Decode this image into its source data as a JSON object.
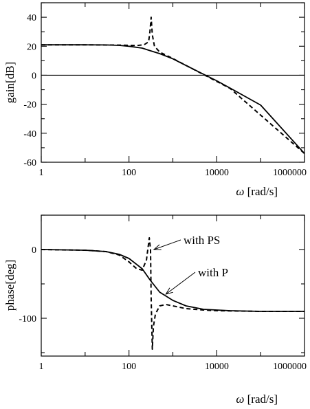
{
  "chart_data": [
    {
      "type": "line",
      "xscale": "log",
      "xlim": [
        1,
        1000000
      ],
      "ylim": [
        -60,
        50
      ],
      "xticks": [
        1,
        100,
        10000,
        1000000
      ],
      "xtick_labels": [
        "1",
        "100",
        "10000",
        "1000000"
      ],
      "yticks": [
        -60,
        -40,
        -20,
        0,
        20,
        40
      ],
      "ytick_labels": [
        "-60",
        "-40",
        "-20",
        "0",
        "20",
        "40"
      ],
      "xlabel_symbol": "ω",
      "xlabel_unit": "[rad/s]",
      "ylabel": "gain[dB]",
      "grid": false,
      "reference_lines": [
        {
          "y": 0
        }
      ],
      "series": [
        {
          "style": "solid",
          "x": [
            1,
            10,
            30,
            60,
            100,
            200,
            300,
            500,
            1000,
            2000,
            5000,
            10000,
            20000,
            100000,
            1000000
          ],
          "y": [
            21,
            21,
            20.9,
            20.6,
            20,
            18.7,
            17,
            14.9,
            11.3,
            6.7,
            0.7,
            -3.8,
            -8.8,
            -20.6,
            -54
          ]
        },
        {
          "style": "dashed",
          "x": [
            1,
            10,
            60,
            150,
            220,
            280,
            300,
            320,
            340,
            380,
            500,
            1000,
            5000,
            20000,
            1000000
          ],
          "y": [
            21,
            21,
            20.8,
            20.5,
            21,
            23,
            30,
            40,
            28,
            20,
            16,
            11.5,
            0.5,
            -9,
            -54
          ]
        }
      ]
    },
    {
      "type": "line",
      "xscale": "log",
      "xlim": [
        1,
        1000000
      ],
      "ylim": [
        -155,
        50
      ],
      "xticks": [
        1,
        100,
        10000,
        1000000
      ],
      "xtick_labels": [
        "1",
        "100",
        "10000",
        "1000000"
      ],
      "yticks": [
        0,
        -100
      ],
      "ytick_labels": [
        "0",
        "-100"
      ],
      "xlabel_symbol": "ω",
      "xlabel_unit": "[rad/s]",
      "ylabel": "phase[deg]",
      "grid": false,
      "series": [
        {
          "name": "with P",
          "style": "solid",
          "x": [
            1,
            10,
            30,
            60,
            100,
            200,
            300,
            500,
            1000,
            2000,
            5000,
            10000,
            20000,
            100000,
            1000000
          ],
          "y": [
            0,
            -1,
            -3,
            -7,
            -13,
            -28,
            -44,
            -62,
            -74,
            -82,
            -87,
            -88,
            -89,
            -90,
            -90
          ]
        },
        {
          "name": "with PS",
          "style": "dashed",
          "x": [
            1,
            10,
            30,
            60,
            100,
            150,
            200,
            250,
            290,
            310,
            320,
            340,
            360,
            400,
            500,
            700,
            1000,
            2000,
            5000,
            10000,
            100000,
            1000000
          ],
          "y": [
            0,
            -1,
            -3,
            -8,
            -18,
            -28,
            -30,
            -15,
            17,
            0,
            -70,
            -145,
            -112,
            -94,
            -82,
            -80,
            -82,
            -86,
            -88,
            -89,
            -90,
            -90
          ]
        }
      ],
      "annotations": [
        {
          "text": "with PS",
          "series": "with PS",
          "x": 320,
          "y": 0
        },
        {
          "text": "with P",
          "series": "with P",
          "x": 600,
          "y": -65
        }
      ]
    }
  ]
}
